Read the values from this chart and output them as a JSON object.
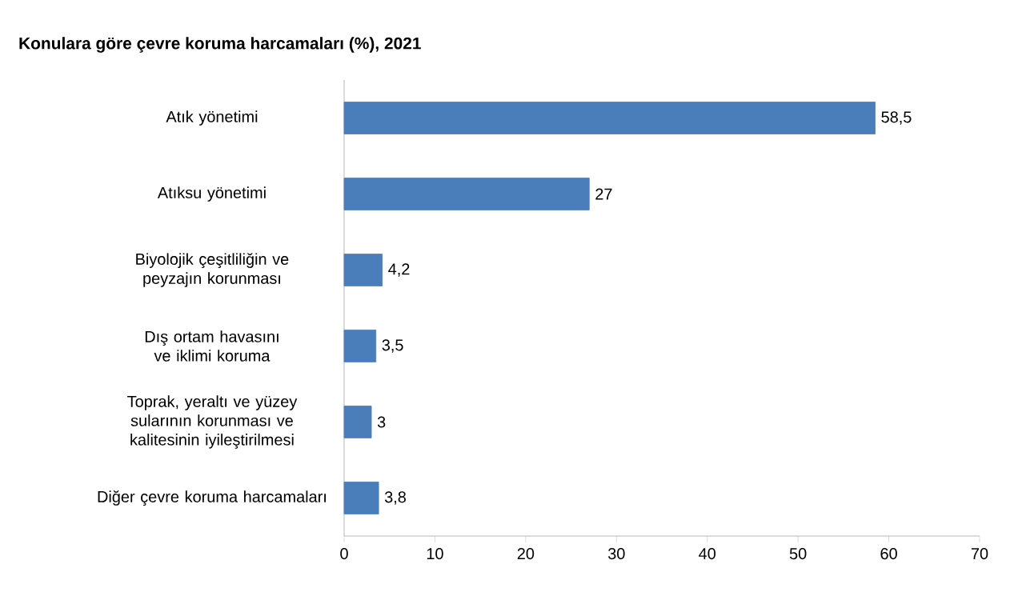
{
  "chart_data": {
    "type": "bar",
    "orientation": "horizontal",
    "title": "Konulara göre çevre koruma harcamaları (%), 2021",
    "categories": [
      "Atık yönetimi",
      "Atıksu yönetimi",
      "Biyolojik çeşitliliğin ve peyzajın korunması",
      "Dış ortam havasını ve iklimi koruma",
      "Toprak, yeraltı ve yüzey sularının korunması ve kalitesinin iyileştirilmesi",
      "Diğer çevre koruma harcamaları"
    ],
    "values": [
      58.5,
      27,
      4.2,
      3.5,
      3,
      3.8
    ],
    "value_labels": [
      "58,5",
      "27",
      "4,2",
      "3,5",
      "3",
      "3,8"
    ],
    "color": "#4a7ebb",
    "xlim": [
      0,
      70
    ],
    "xticks": [
      0,
      10,
      20,
      30,
      40,
      50,
      60,
      70
    ]
  }
}
